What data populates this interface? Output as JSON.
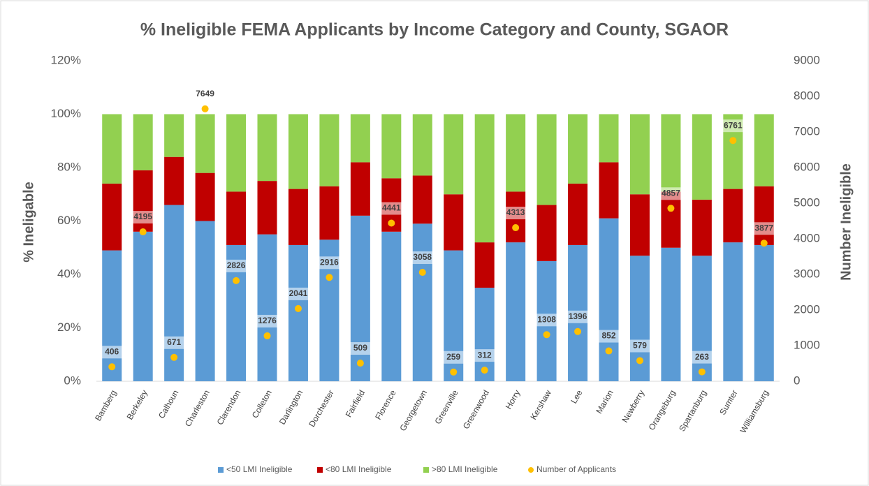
{
  "chart_data": {
    "type": "bar",
    "stacked": true,
    "title": "% Ineligible FEMA Applicants by Income Category and County, SGAOR",
    "ylabel": "% Ineligable",
    "y2label": "Number Ineligible",
    "categories": [
      "Bamberg",
      "Berkeley",
      "Calhoun",
      "Charleston",
      "Clarendon",
      "Colleton",
      "Darlington",
      "Dorchester",
      "Fairfield",
      "Florence",
      "Georgetown",
      "Greenville",
      "Greenwood",
      "Horry",
      "Kershaw",
      "Lee",
      "Marion",
      "Newberry",
      "Orangeburg",
      "Spartanburg",
      "Sumter",
      "Williamsburg"
    ],
    "series": [
      {
        "name": "<50 LMI Ineligible",
        "color": "#5b9bd5",
        "values": [
          49,
          56,
          66,
          60,
          51,
          55,
          51,
          53,
          62,
          56,
          59,
          49,
          35,
          52,
          45,
          51,
          61,
          47,
          50,
          47,
          52,
          51
        ]
      },
      {
        "name": "<80 LMI Ineligible",
        "color": "#c00000",
        "values": [
          25,
          23,
          18,
          18,
          20,
          20,
          21,
          20,
          20,
          20,
          18,
          21,
          17,
          19,
          21,
          23,
          21,
          23,
          21,
          21,
          20,
          22
        ]
      },
      {
        "name": ">80 LMI Ineligible",
        "color": "#92d050",
        "values": [
          26,
          21,
          16,
          22,
          29,
          25,
          28,
          27,
          18,
          24,
          23,
          30,
          48,
          29,
          34,
          26,
          18,
          30,
          29,
          32,
          28,
          27
        ]
      },
      {
        "name": "Number of Applicants",
        "color": "#ffc000",
        "type": "scatter",
        "axis": "y2",
        "values": [
          406,
          4195,
          671,
          7649,
          2826,
          1276,
          2041,
          2916,
          509,
          4441,
          3058,
          259,
          312,
          4313,
          1308,
          1396,
          852,
          579,
          4857,
          263,
          6761,
          3877
        ]
      }
    ],
    "ylim": [
      0,
      120
    ],
    "yticks": [
      {
        "value": 0,
        "label": "0%"
      },
      {
        "value": 20,
        "label": "20%"
      },
      {
        "value": 40,
        "label": "40%"
      },
      {
        "value": 60,
        "label": "60%"
      },
      {
        "value": 80,
        "label": "80%"
      },
      {
        "value": 100,
        "label": "100%"
      },
      {
        "value": 120,
        "label": "120%"
      }
    ],
    "y2lim": [
      0,
      9000
    ],
    "y2ticks": [
      0,
      1000,
      2000,
      3000,
      4000,
      5000,
      6000,
      7000,
      8000,
      9000
    ],
    "legend": "bottom"
  }
}
